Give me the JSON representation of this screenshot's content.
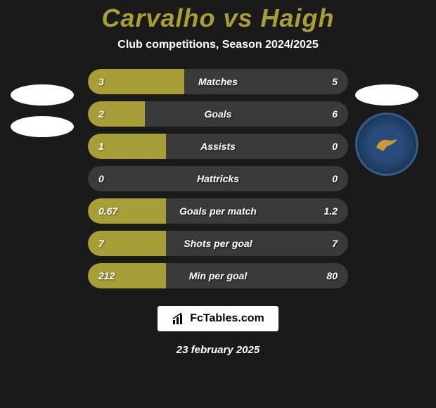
{
  "header": {
    "title": "Carvalho vs Haigh",
    "subtitle": "Club competitions, Season 2024/2025"
  },
  "colors": {
    "background": "#1a1a1a",
    "accent": "#a89e38",
    "bar_bg": "#3a3a3a",
    "text": "#ffffff"
  },
  "stats": [
    {
      "label": "Matches",
      "left_value": "3",
      "right_value": "5",
      "left_pct": 37,
      "right_pct": 0
    },
    {
      "label": "Goals",
      "left_value": "2",
      "right_value": "6",
      "left_pct": 22,
      "right_pct": 0
    },
    {
      "label": "Assists",
      "left_value": "1",
      "right_value": "0",
      "left_pct": 30,
      "right_pct": 0
    },
    {
      "label": "Hattricks",
      "left_value": "0",
      "right_value": "0",
      "left_pct": 0,
      "right_pct": 0
    },
    {
      "label": "Goals per match",
      "left_value": "0.67",
      "right_value": "1.2",
      "left_pct": 30,
      "right_pct": 0
    },
    {
      "label": "Shots per goal",
      "left_value": "7",
      "right_value": "7",
      "left_pct": 30,
      "right_pct": 0
    },
    {
      "label": "Min per goal",
      "left_value": "212",
      "right_value": "80",
      "left_pct": 30,
      "right_pct": 0
    }
  ],
  "branding": {
    "text": "FcTables.com"
  },
  "footer": {
    "date": "23 february 2025"
  },
  "badges": {
    "right_club": "Farnborough"
  }
}
